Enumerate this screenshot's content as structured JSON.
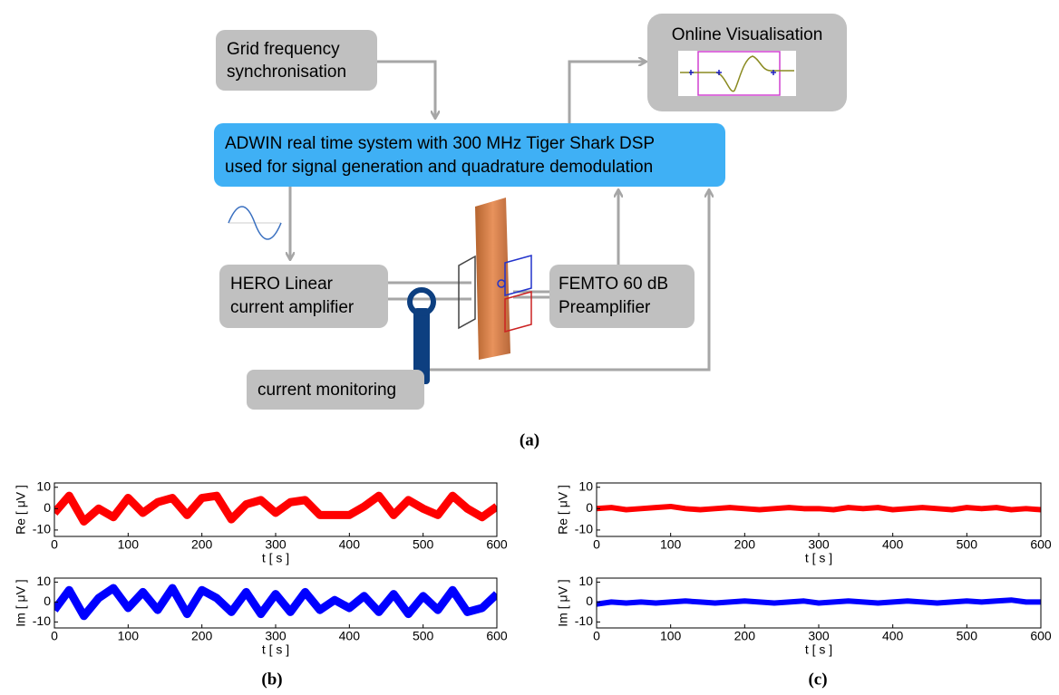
{
  "diagram": {
    "grid_sync": [
      "Grid frequency",
      "synchronisation"
    ],
    "online_vis": "Online Visualisation",
    "adwin": [
      "ADWIN real time system with 300 MHz  Tiger Shark DSP",
      "used for signal generation and quadrature demodulation"
    ],
    "hero": [
      "HERO  Linear",
      "current amplifier"
    ],
    "femto": [
      "FEMTO 60 dB",
      "Preamplifier"
    ],
    "current_monitoring": "current monitoring"
  },
  "panel_labels": [
    "(a)",
    "(b)",
    "(c)"
  ],
  "chart_data": [
    {
      "type": "line",
      "ylabel": "Re [  μV ]",
      "xlabel": "t [ s ]",
      "color": "#ff0000",
      "x": [
        0,
        20,
        40,
        60,
        80,
        100,
        120,
        140,
        160,
        180,
        200,
        220,
        240,
        260,
        280,
        300,
        320,
        340,
        360,
        380,
        400,
        420,
        440,
        460,
        480,
        500,
        520,
        540,
        560,
        580,
        600
      ],
      "values": [
        -2,
        6,
        -6,
        0,
        -4,
        5,
        -2,
        3,
        5,
        -3,
        5,
        6,
        -5,
        2,
        4,
        -2,
        3,
        4,
        -3,
        -3,
        -3,
        1,
        6,
        -3,
        4,
        0,
        -3,
        6,
        0,
        -4,
        1
      ],
      "xlim": [
        0,
        600
      ],
      "xticks": [
        0,
        100,
        200,
        300,
        400,
        500,
        600
      ],
      "ylim": [
        -13,
        12
      ],
      "yticks": [
        -10,
        0,
        10
      ]
    },
    {
      "type": "line",
      "ylabel": "Im [  μV ]",
      "xlabel": "t [ s ]",
      "color": "#0000ff",
      "x": [
        0,
        20,
        40,
        60,
        80,
        100,
        120,
        140,
        160,
        180,
        200,
        220,
        240,
        260,
        280,
        300,
        320,
        340,
        360,
        380,
        400,
        420,
        440,
        460,
        480,
        500,
        520,
        540,
        560,
        580,
        600
      ],
      "values": [
        -4,
        6,
        -7,
        2,
        7,
        -3,
        5,
        -4,
        7,
        -6,
        6,
        2,
        -5,
        5,
        -6,
        4,
        -5,
        5,
        -4,
        1,
        -3,
        3,
        -5,
        4,
        -6,
        3,
        -4,
        6,
        -5,
        -3,
        4
      ],
      "xlim": [
        0,
        600
      ],
      "xticks": [
        0,
        100,
        200,
        300,
        400,
        500,
        600
      ],
      "ylim": [
        -13,
        12
      ],
      "yticks": [
        -10,
        0,
        10
      ]
    },
    {
      "type": "line",
      "ylabel": "Re [  μV ]",
      "xlabel": "t [ s ]",
      "color": "#ff0000",
      "x": [
        0,
        20,
        40,
        60,
        80,
        100,
        120,
        140,
        160,
        180,
        200,
        220,
        240,
        260,
        280,
        300,
        320,
        340,
        360,
        380,
        400,
        420,
        440,
        460,
        480,
        500,
        520,
        540,
        560,
        580,
        600
      ],
      "values": [
        0,
        0.5,
        -0.5,
        0,
        0.5,
        1,
        0,
        -0.5,
        0,
        0.5,
        0,
        -0.5,
        0,
        0.5,
        0,
        0,
        -0.5,
        0.5,
        0,
        0.5,
        -0.5,
        0,
        0.5,
        0,
        -0.5,
        0.5,
        0,
        0.5,
        -0.5,
        0,
        -0.5
      ],
      "xlim": [
        0,
        600
      ],
      "xticks": [
        0,
        100,
        200,
        300,
        400,
        500,
        600
      ],
      "ylim": [
        -13,
        12
      ],
      "yticks": [
        -10,
        0,
        10
      ]
    },
    {
      "type": "line",
      "ylabel": "Im [  μV ]",
      "xlabel": "t [ s ]",
      "color": "#0000ff",
      "x": [
        0,
        20,
        40,
        60,
        80,
        100,
        120,
        140,
        160,
        180,
        200,
        220,
        240,
        260,
        280,
        300,
        320,
        340,
        360,
        380,
        400,
        420,
        440,
        460,
        480,
        500,
        520,
        540,
        560,
        580,
        600
      ],
      "values": [
        -1,
        0,
        -0.5,
        0,
        -0.5,
        0,
        0.5,
        0,
        -0.5,
        0,
        0.5,
        0,
        -0.5,
        0,
        0.5,
        -0.5,
        0,
        0.5,
        0,
        -0.5,
        0,
        0.5,
        0,
        -0.5,
        0,
        0.5,
        0,
        0.5,
        1,
        0,
        0
      ],
      "xlim": [
        0,
        600
      ],
      "xticks": [
        0,
        100,
        200,
        300,
        400,
        500,
        600
      ],
      "ylim": [
        -13,
        12
      ],
      "yticks": [
        -10,
        0,
        10
      ]
    }
  ]
}
